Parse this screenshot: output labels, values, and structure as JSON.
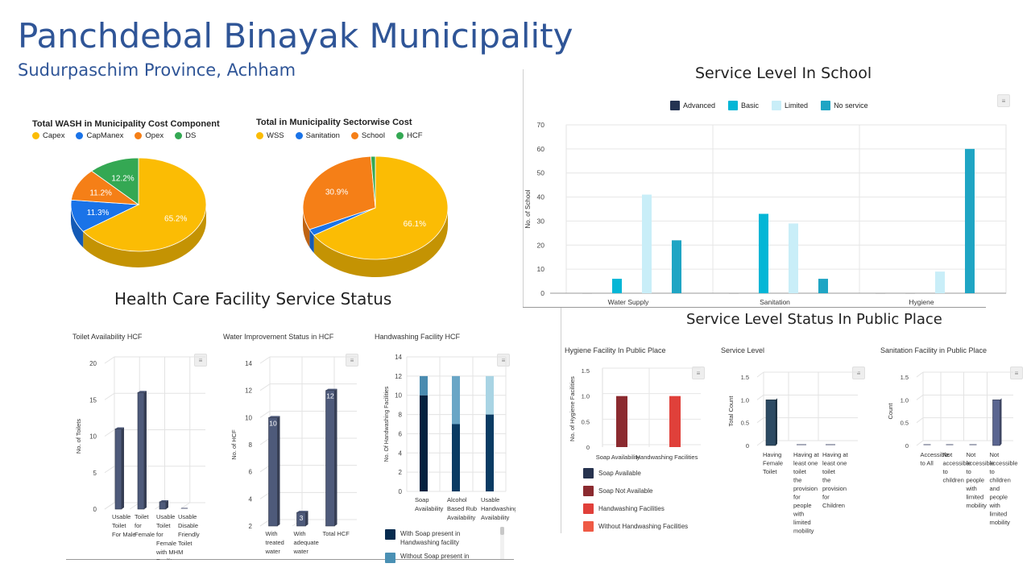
{
  "header": {
    "title": "Panchdebal Binayak Municipality",
    "subtitle": "Sudurpaschim Province, Achham"
  },
  "colors": {
    "title": "#2f5597",
    "capex": "#fbbc04",
    "capmanex": "#1a73e8",
    "opex": "#f57f17",
    "ds": "#34a853",
    "advanced": "#243352",
    "basic": "#04b6d6",
    "limited": "#c9eef8",
    "no_service": "#1fa5c4"
  },
  "pie1": {
    "title": "Total WASH in Municipality Cost Component",
    "legend": [
      "Capex",
      "CapManex",
      "Opex",
      "DS"
    ],
    "labels": [
      "65.2%",
      "11.3%",
      "11.2%",
      "12.2%"
    ]
  },
  "pie2": {
    "title": "Total in Municipality Sectorwise Cost",
    "legend": [
      "WSS",
      "Sanitation",
      "School",
      "HCF"
    ],
    "labels": [
      "66.1%",
      "30.9%"
    ]
  },
  "school": {
    "title": "Service Level In School",
    "legend": [
      "Advanced",
      "Basic",
      "Limited",
      "No service"
    ],
    "ylabel": "No. of School",
    "yticks": [
      "70",
      "60",
      "50",
      "40",
      "30",
      "20",
      "10",
      "0"
    ],
    "categories": [
      "Water Supply",
      "Sanitation",
      "Hygiene"
    ]
  },
  "hcf": {
    "title": "Health Care Facility Service Status",
    "toilet": {
      "title": "Toilet Availability HCF",
      "ylabel": "No. of Toilets",
      "yticks": [
        "20",
        "15",
        "10",
        "5",
        "0"
      ],
      "categories": [
        "Usable Toilet For Male",
        "Toilet for Female",
        "Usable Toilet for Female with MHM Facility",
        "Usable Disable Friendly Toilet"
      ]
    },
    "water": {
      "title": "Water Improvement Status in HCF",
      "ylabel": "No. of HCF",
      "yticks": [
        "14",
        "12",
        "10",
        "8",
        "6",
        "4",
        "2"
      ],
      "categories": [
        "With treated water",
        "With adequate water",
        "Total HCF"
      ],
      "data_labels": [
        "10",
        "3",
        "12"
      ]
    },
    "handwash": {
      "title": "Handwashing Facility HCF",
      "ylabel": "No. Of Handwashing Facilities",
      "yticks": [
        "14",
        "12",
        "10",
        "8",
        "6",
        "4",
        "2",
        "0"
      ],
      "categories": [
        "Soap Availability",
        "Alcohol Based Rub Availability",
        "Usable Handwashing Availability"
      ],
      "legend": [
        "With Soap present in Handwashing facility",
        "Without Soap present in"
      ]
    }
  },
  "public": {
    "title": "Service Level Status In Public Place",
    "hygiene": {
      "title": "Hygiene Facility In Public Place",
      "ylabel": "No. of Hygiene Facilities",
      "yticks": [
        "1.5",
        "1.0",
        "0.5",
        "0"
      ],
      "categories": [
        "Soap Availability",
        "Handwashing Facilities"
      ],
      "legend": [
        "Soap Available",
        "Soap Not Available",
        "Handwashing Facilities",
        "Without Handwashing Facilities"
      ]
    },
    "service": {
      "title": "Service Level",
      "ylabel": "Total Count",
      "yticks": [
        "1.5",
        "1.0",
        "0.5",
        "0"
      ],
      "categories": [
        "Having Female Toilet",
        "Having at least one toilet the provision for people with limited mobility",
        "Having at least one toilet the provision for Children"
      ]
    },
    "sanitation": {
      "title": "Sanitation Facility in Public Place",
      "ylabel": "Count",
      "yticks": [
        "1.5",
        "1.0",
        "0.5",
        "0"
      ],
      "categories": [
        "Accessible to All",
        "Not accessible to children",
        "Not accessible to people with limited mobility",
        "Not accessible to children and people with limited mobility"
      ]
    }
  },
  "chart_data": [
    {
      "type": "pie",
      "title": "Total WASH in Municipality Cost Component",
      "categories": [
        "Capex",
        "CapManex",
        "Opex",
        "DS"
      ],
      "values": [
        65.2,
        11.3,
        11.2,
        12.2
      ]
    },
    {
      "type": "pie",
      "title": "Total in Municipality Sectorwise Cost",
      "categories": [
        "WSS",
        "Sanitation",
        "School",
        "HCF"
      ],
      "values": [
        66.1,
        2.0,
        30.9,
        1.0
      ]
    },
    {
      "type": "bar",
      "title": "Service Level In School",
      "categories": [
        "Water Supply",
        "Sanitation",
        "Hygiene"
      ],
      "series": [
        {
          "name": "Advanced",
          "values": [
            0,
            0,
            0
          ]
        },
        {
          "name": "Basic",
          "values": [
            6,
            33,
            0
          ]
        },
        {
          "name": "Limited",
          "values": [
            41,
            29,
            9
          ]
        },
        {
          "name": "No service",
          "values": [
            22,
            6,
            60
          ]
        }
      ],
      "ylabel": "No. of School",
      "ylim": [
        0,
        70
      ],
      "legend": "top"
    },
    {
      "type": "bar",
      "title": "Toilet Availability HCF",
      "categories": [
        "Usable Toilet For Male",
        "Toilet for Female",
        "Usable Toilet for Female with MHM Facility",
        "Usable Disable Friendly Toilet"
      ],
      "values": [
        11,
        16,
        1,
        0
      ],
      "ylabel": "No. of Toilets",
      "ylim": [
        0,
        20
      ]
    },
    {
      "type": "bar",
      "title": "Water Improvement Status in HCF",
      "categories": [
        "With treated water",
        "With adequate water",
        "Total HCF"
      ],
      "values": [
        10,
        3,
        12
      ],
      "ylabel": "No. of HCF",
      "ylim": [
        2,
        14
      ]
    },
    {
      "type": "bar",
      "title": "Handwashing Facility HCF",
      "categories": [
        "Soap Availability",
        "Alcohol Based Rub Availability",
        "Usable Handwashing Availability"
      ],
      "series": [
        {
          "name": "With Soap present in Handwashing facility",
          "values": [
            10,
            7,
            8
          ]
        },
        {
          "name": "Without Soap present in",
          "values": [
            2,
            5,
            4
          ]
        }
      ],
      "stacked": true,
      "ylabel": "No. Of Handwashing Facilities",
      "ylim": [
        0,
        14
      ]
    },
    {
      "type": "bar",
      "title": "Hygiene Facility In Public Place",
      "categories": [
        "Soap Availability",
        "Handwashing Facilities"
      ],
      "values": [
        1,
        1
      ],
      "ylabel": "No. of Hygiene Facilities",
      "ylim": [
        0,
        1.5
      ]
    },
    {
      "type": "bar",
      "title": "Service Level",
      "categories": [
        "Having Female Toilet",
        "Having at least one toilet the provision for people with limited mobility",
        "Having at least one toilet the provision for Children"
      ],
      "values": [
        1,
        0,
        0
      ],
      "ylabel": "Total Count",
      "ylim": [
        0,
        1.5
      ]
    },
    {
      "type": "bar",
      "title": "Sanitation Facility in Public Place",
      "categories": [
        "Accessible to All",
        "Not accessible to children",
        "Not accessible to people with limited mobility",
        "Not accessible to children and people with limited mobility"
      ],
      "values": [
        0,
        0,
        0,
        1
      ],
      "ylabel": "Count",
      "ylim": [
        0,
        1.5
      ]
    }
  ]
}
